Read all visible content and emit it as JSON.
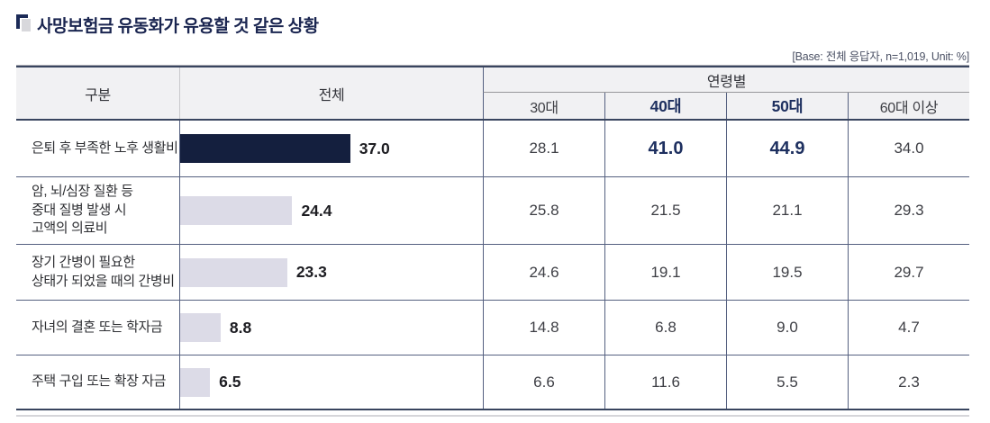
{
  "title": "사망보험금 유동화가 유용할 것 같은 상황",
  "base_note": "[Base: 전체 응답자, n=1,019, Unit: %]",
  "table": {
    "header": {
      "category": "구분",
      "total": "전체",
      "age_group": "연령별",
      "age_cols": [
        {
          "label": "30대",
          "highlight": false
        },
        {
          "label": "40대",
          "highlight": true
        },
        {
          "label": "50대",
          "highlight": true
        },
        {
          "label": "60대 이상",
          "highlight": false
        }
      ]
    },
    "rows": [
      {
        "label_lines": [
          "은퇴 후 부족한 노후 생활비"
        ],
        "total_display": "37.0",
        "total_value": 37.0,
        "bar_style": "dark",
        "cells": [
          {
            "display": "28.1",
            "highlight": false
          },
          {
            "display": "41.0",
            "highlight": true
          },
          {
            "display": "44.9",
            "highlight": true
          },
          {
            "display": "34.0",
            "highlight": false
          }
        ]
      },
      {
        "label_lines": [
          "암, 뇌/심장 질환 등",
          "중대 질병 발생 시",
          "고액의 의료비"
        ],
        "total_display": "24.4",
        "total_value": 24.4,
        "bar_style": "light",
        "cells": [
          {
            "display": "25.8",
            "highlight": false
          },
          {
            "display": "21.5",
            "highlight": false
          },
          {
            "display": "21.1",
            "highlight": false
          },
          {
            "display": "29.3",
            "highlight": false
          }
        ]
      },
      {
        "label_lines": [
          "장기 간병이 필요한",
          "상태가 되었을 때의 간병비"
        ],
        "total_display": "23.3",
        "total_value": 23.3,
        "bar_style": "light",
        "cells": [
          {
            "display": "24.6",
            "highlight": false
          },
          {
            "display": "19.1",
            "highlight": false
          },
          {
            "display": "19.5",
            "highlight": false
          },
          {
            "display": "29.7",
            "highlight": false
          }
        ]
      },
      {
        "label_lines": [
          "자녀의 결혼 또는 학자금"
        ],
        "total_display": "8.8",
        "total_value": 8.8,
        "bar_style": "light",
        "cells": [
          {
            "display": "14.8",
            "highlight": false
          },
          {
            "display": "6.8",
            "highlight": false
          },
          {
            "display": "9.0",
            "highlight": false
          },
          {
            "display": "4.7",
            "highlight": false
          }
        ]
      },
      {
        "label_lines": [
          "주택 구입 또는 확장 자금"
        ],
        "total_display": "6.5",
        "total_value": 6.5,
        "bar_style": "light",
        "cells": [
          {
            "display": "6.6",
            "highlight": false
          },
          {
            "display": "11.6",
            "highlight": false
          },
          {
            "display": "5.5",
            "highlight": false
          },
          {
            "display": "2.3",
            "highlight": false
          }
        ]
      }
    ]
  },
  "colors": {
    "title_navy": "#1a2550",
    "accent_navy": "#1d2f5f",
    "bar_dark": "#141f3e",
    "bar_light": "#dcdbe7",
    "header_bg": "#f1f1f3",
    "border_navy": "#39455f",
    "border_slate": "#556080"
  },
  "chart_data": {
    "type": "table",
    "title": "사망보험금 유동화가 유용할 것 같은 상황",
    "note": "[Base: 전체 응답자, n=1,019, Unit: %]",
    "base_n": 1019,
    "unit": "%",
    "embedded_bar_series": "전체",
    "categories": [
      "은퇴 후 부족한 노후 생활비",
      "암, 뇌/심장 질환 등 중대 질병 발생 시 고액의 의료비",
      "장기 간병이 필요한 상태가 되었을 때의 간병비",
      "자녀의 결혼 또는 학자금",
      "주택 구입 또는 확장 자금"
    ],
    "series": [
      {
        "name": "전체",
        "values": [
          37.0,
          24.4,
          23.3,
          8.8,
          6.5
        ]
      },
      {
        "name": "30대",
        "values": [
          28.1,
          25.8,
          24.6,
          14.8,
          6.6
        ]
      },
      {
        "name": "40대",
        "values": [
          41.0,
          21.5,
          19.1,
          6.8,
          11.6
        ]
      },
      {
        "name": "50대",
        "values": [
          44.9,
          21.1,
          19.5,
          9.0,
          5.5
        ]
      },
      {
        "name": "60대 이상",
        "values": [
          34.0,
          29.3,
          29.7,
          4.7,
          2.3
        ]
      }
    ],
    "highlighted_cells": [
      {
        "row": "은퇴 후 부족한 노후 생활비",
        "column": "40대",
        "value": 41.0
      },
      {
        "row": "은퇴 후 부족한 노후 생활비",
        "column": "50대",
        "value": 44.9
      }
    ]
  }
}
